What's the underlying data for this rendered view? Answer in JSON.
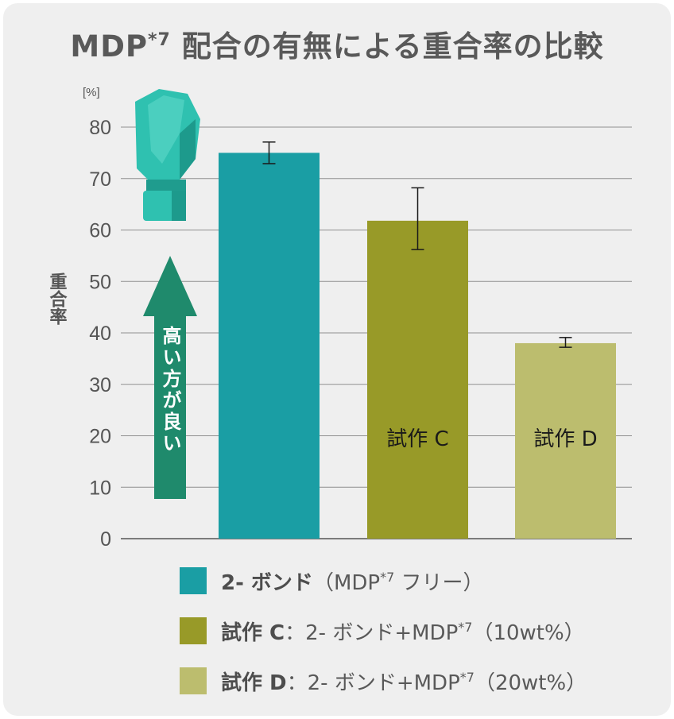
{
  "title": {
    "main": "MDP",
    "sup": "*7",
    "rest": " 配合の有無による重合率の比較"
  },
  "chart_data": {
    "type": "bar",
    "ylabel": "重合率",
    "yunit": "[%]",
    "ylim": [
      0,
      80
    ],
    "yticks": [
      0,
      10,
      20,
      30,
      40,
      50,
      60,
      70,
      80
    ],
    "grid": true,
    "categories": [
      "2-ボンド",
      "試作 C",
      "試作 D"
    ],
    "bar_labels": [
      "",
      "試作 C",
      "試作 D"
    ],
    "values": [
      75,
      61.8,
      38
    ],
    "error_low": [
      72.9,
      56.2,
      37.2
    ],
    "error_high": [
      77.1,
      68.2,
      39.1
    ],
    "colors": [
      "#1a9ea4",
      "#989a28",
      "#bcbd6e"
    ],
    "annotation": "高い方が良い",
    "annotation_color": "#1f8a6c"
  },
  "legend": [
    {
      "name": "2- ボンド",
      "desc_a": "（MDP",
      "desc_sup": "*7",
      "desc_b": " フリー）",
      "color": "#1a9ea4"
    },
    {
      "name": "試作 C",
      "desc_a": "：2- ボンド+MDP",
      "desc_sup": "*7",
      "desc_b": "（10wt%）",
      "color": "#989a28"
    },
    {
      "name": "試作 D",
      "desc_a": "：2- ボンド+MDP",
      "desc_sup": "*7",
      "desc_b": "（20wt%）",
      "color": "#bcbd6e"
    }
  ],
  "product_color": "#2fc1b0"
}
